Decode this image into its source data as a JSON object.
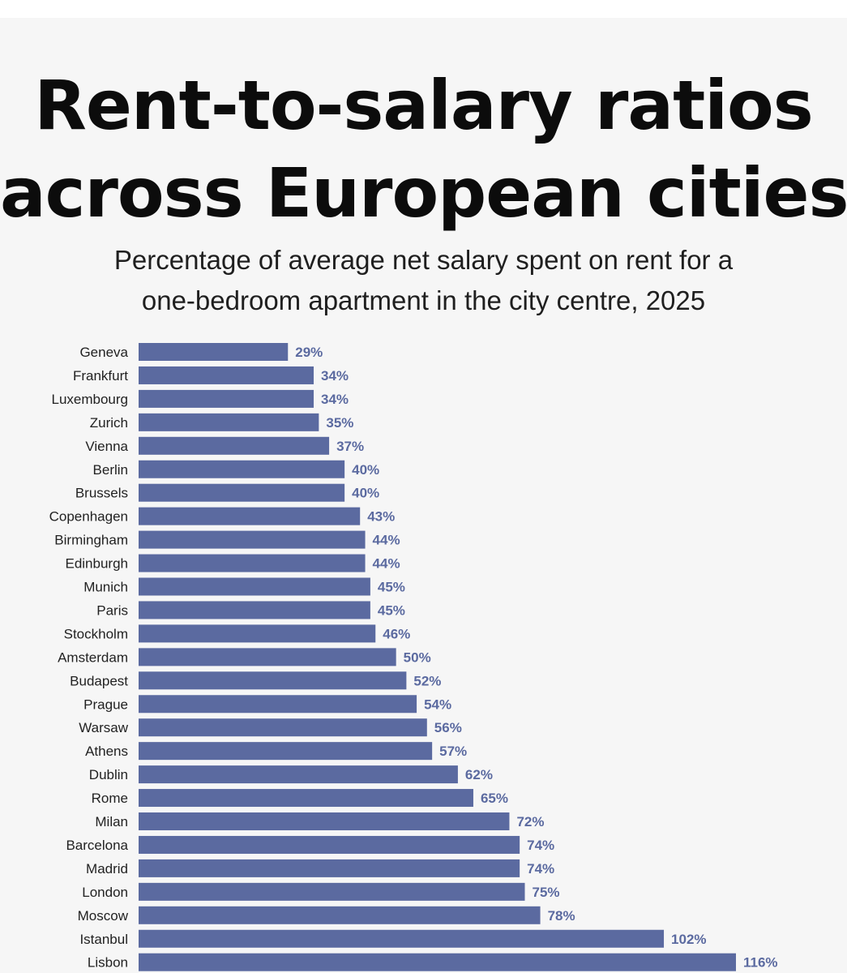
{
  "title_lines": [
    "Rent-to-salary ratios",
    "across European cities"
  ],
  "subtitle_lines": [
    "Percentage of average net salary spent on rent for a",
    "one-bedroom apartment in the city centre, 2025"
  ],
  "colors": {
    "bar": "#5b6aa0",
    "value_label": "#5b6aa0",
    "background": "#f6f6f6",
    "title": "#0c0c0c"
  },
  "chart_data": {
    "type": "bar",
    "orientation": "horizontal",
    "title": "Rent-to-salary ratios across European cities",
    "subtitle": "Percentage of average net salary spent on rent for a one-bedroom apartment in the city centre, 2025",
    "categories": [
      "Geneva",
      "Frankfurt",
      "Luxembourg",
      "Zurich",
      "Vienna",
      "Berlin",
      "Brussels",
      "Copenhagen",
      "Birmingham",
      "Edinburgh",
      "Munich",
      "Paris",
      "Stockholm",
      "Amsterdam",
      "Budapest",
      "Prague",
      "Warsaw",
      "Athens",
      "Dublin",
      "Rome",
      "Milan",
      "Barcelona",
      "Madrid",
      "London",
      "Moscow",
      "Istanbul",
      "Lisbon"
    ],
    "values": [
      29,
      34,
      34,
      35,
      37,
      40,
      40,
      43,
      44,
      44,
      45,
      45,
      46,
      50,
      52,
      54,
      56,
      57,
      62,
      65,
      72,
      74,
      74,
      75,
      78,
      102,
      116
    ],
    "value_labels": [
      "29%",
      "34%",
      "34%",
      "35%",
      "37%",
      "40%",
      "40%",
      "43%",
      "44%",
      "44%",
      "45%",
      "45%",
      "46%",
      "50%",
      "52%",
      "54%",
      "56%",
      "57%",
      "62%",
      "65%",
      "72%",
      "74%",
      "74%",
      "75%",
      "78%",
      "102%",
      "116%"
    ],
    "xlabel": "",
    "ylabel": "",
    "xlim": [
      0,
      116
    ],
    "grid": false,
    "legend": "none"
  }
}
